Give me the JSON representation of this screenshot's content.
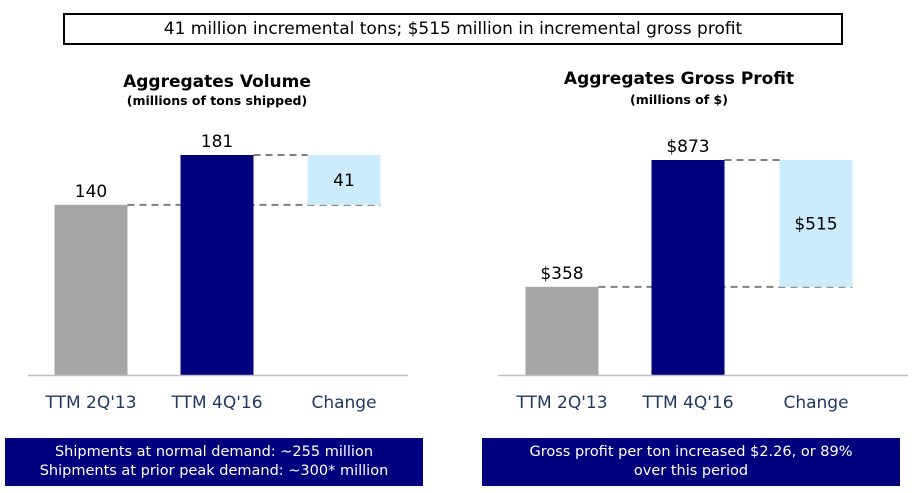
{
  "headline": "41 million incremental tons; $515 million in incremental gross profit",
  "chart_data": [
    {
      "type": "bar",
      "subtype": "waterfall",
      "title": "Aggregates Volume",
      "subtitle": "(millions of tons shipped)",
      "categories": [
        "TTM 2Q'13",
        "TTM 4Q'16",
        "Change"
      ],
      "values": [
        140,
        181,
        41
      ],
      "value_labels": [
        "140",
        "181",
        "41"
      ],
      "change_range": [
        140,
        181
      ],
      "ylim": [
        0,
        200
      ],
      "grid": false,
      "colors": [
        "#a6a6a6",
        "#00007f",
        "#ccecfb"
      ],
      "connector_color": "#808080"
    },
    {
      "type": "bar",
      "subtype": "waterfall",
      "title": "Aggregates Gross Profit",
      "subtitle": "(millions of $)",
      "categories": [
        "TTM 2Q'13",
        "TTM 4Q'16",
        "Change"
      ],
      "values": [
        358,
        873,
        515
      ],
      "value_labels": [
        "$358",
        "$873",
        "$515"
      ],
      "change_range": [
        358,
        873
      ],
      "ylim": [
        0,
        900
      ],
      "grid": false,
      "colors": [
        "#a6a6a6",
        "#00007f",
        "#ccecfb"
      ],
      "connector_color": "#808080"
    }
  ],
  "notes": {
    "left": [
      "Shipments at normal demand: ~255 million",
      "Shipments at prior peak demand: ~300* million"
    ],
    "right": [
      "Gross profit per ton increased $2.26, or 89%",
      "over this period"
    ]
  }
}
